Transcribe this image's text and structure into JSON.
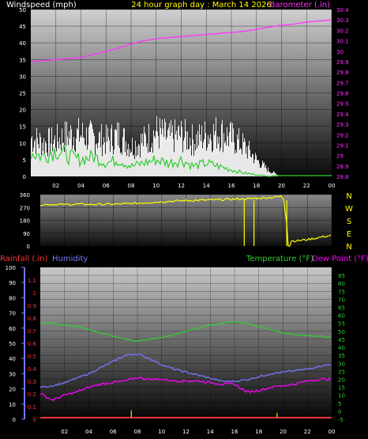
{
  "header": {
    "wind_label": "Windspeed (mph)",
    "title": "24 hour graph day : March 14 2026",
    "baro_label": "Barometer (.in)"
  },
  "panel3_labels": {
    "rain": "Rainfall (.in)",
    "humidity": "Humidity",
    "temperature": "Temperature (°F)",
    "dewpoint": "Dew Point (°F)"
  },
  "compass_labels": [
    "N",
    "W",
    "S",
    "E",
    "N"
  ],
  "colors": {
    "wind": "#ffffff",
    "gust": "#33cc33",
    "barometer": "#ff33ff",
    "direction": "#ffff00",
    "temperature": "#33cc33",
    "dewpoint": "#ff00ff",
    "humidity": "#7777ff",
    "rain": "#ff3333",
    "rain_bars": "#cccc00"
  },
  "chart_data": [
    {
      "type": "line",
      "name": "wind-barometer",
      "x_ticks": [
        "02",
        "04",
        "06",
        "08",
        "10",
        "12",
        "14",
        "16",
        "18",
        "20",
        "22",
        "00"
      ],
      "y_left_ticks": [
        "0",
        "5",
        "10",
        "15",
        "20",
        "25",
        "30",
        "35",
        "40",
        "45",
        "50"
      ],
      "y_left_range": [
        0,
        50
      ],
      "y_right_ticks": [
        "28.8",
        "28.9",
        "29",
        "29.1",
        "29.2",
        "29.3",
        "29.4",
        "29.5",
        "29.6",
        "29.7",
        "29.8",
        "29.9",
        "30",
        "30.1",
        "30.2",
        "30.3",
        "30.4"
      ],
      "y_right_range": [
        28.8,
        30.4
      ],
      "x_hours": [
        0,
        1,
        2,
        3,
        4,
        5,
        6,
        7,
        8,
        9,
        10,
        11,
        12,
        13,
        14,
        15,
        16,
        17,
        18,
        19,
        20,
        21,
        22,
        23,
        24
      ],
      "series": [
        {
          "key": "windspeed",
          "axis": "left",
          "values": [
            14,
            12,
            13,
            15,
            15,
            14,
            13,
            15,
            11,
            13,
            16,
            14,
            15,
            13,
            15,
            16,
            14,
            11,
            6,
            2,
            0,
            0,
            0,
            0,
            0
          ]
        },
        {
          "key": "gust",
          "axis": "left",
          "values": [
            7,
            6,
            8,
            6,
            5,
            6,
            4,
            5,
            3,
            4,
            5,
            4,
            5,
            3,
            4,
            3,
            2,
            1,
            0.5,
            0,
            0,
            0,
            0,
            0,
            0
          ]
        },
        {
          "key": "barometer",
          "axis": "right",
          "values": [
            29.9,
            29.91,
            29.92,
            29.93,
            29.94,
            29.97,
            30.0,
            30.03,
            30.07,
            30.1,
            30.12,
            30.13,
            30.14,
            30.15,
            30.16,
            30.17,
            30.18,
            30.19,
            30.21,
            30.23,
            30.25,
            30.26,
            30.28,
            30.29,
            30.3
          ]
        }
      ]
    },
    {
      "type": "line",
      "name": "wind-direction",
      "y_ticks": [
        "0",
        "90",
        "180",
        "270",
        "360"
      ],
      "y_range": [
        0,
        360
      ],
      "x_hours": [
        0,
        1,
        2,
        3,
        4,
        5,
        6,
        7,
        8,
        9,
        10,
        11,
        12,
        13,
        14,
        15,
        16,
        17,
        18,
        19,
        20,
        20.5,
        21,
        22,
        23,
        24
      ],
      "values": [
        290,
        292,
        290,
        293,
        291,
        292,
        293,
        295,
        300,
        305,
        310,
        315,
        318,
        320,
        322,
        325,
        328,
        330,
        335,
        340,
        348,
        40,
        35,
        45,
        60,
        75
      ]
    },
    {
      "type": "line",
      "name": "temperature-humidity",
      "y_left_ticks": [
        "0",
        "10",
        "20",
        "30",
        "40",
        "50",
        "60",
        "70",
        "80",
        "90",
        "100"
      ],
      "y_left_range": [
        0,
        100
      ],
      "y_rain_ticks": [
        "0",
        "0.1",
        "0.2",
        "0.3",
        "0.4",
        "0.5",
        "0.6",
        "0.7",
        "0.8",
        "0.9",
        "1",
        "1.1"
      ],
      "y_right_ticks": [
        "-5",
        "0",
        "5",
        "10",
        "15",
        "20",
        "25",
        "30",
        "35",
        "40",
        "45",
        "50",
        "55",
        "60",
        "65",
        "70",
        "75",
        "80",
        "85"
      ],
      "y_right_range": [
        -5,
        90
      ],
      "x_hours": [
        0,
        1,
        2,
        3,
        4,
        5,
        6,
        7,
        8,
        9,
        10,
        11,
        12,
        13,
        14,
        15,
        16,
        17,
        18,
        19,
        20,
        21,
        22,
        23,
        24
      ],
      "series": [
        {
          "key": "temperature",
          "axis": "right",
          "values": [
            55,
            55,
            54,
            53,
            51,
            49,
            47,
            45,
            44,
            45,
            46,
            48,
            50,
            52,
            54,
            55,
            56,
            55,
            53,
            51,
            49,
            48,
            47,
            47,
            46
          ]
        },
        {
          "key": "humidity",
          "axis": "left",
          "values": [
            21,
            22,
            24,
            27,
            30,
            34,
            38,
            42,
            43,
            40,
            36,
            33,
            31,
            29,
            27,
            25,
            25,
            26,
            28,
            30,
            31,
            32,
            33,
            35,
            36
          ]
        },
        {
          "key": "dewpoint",
          "axis": "right",
          "values": [
            11,
            7,
            10,
            12,
            15,
            17,
            18,
            19,
            21,
            20,
            20,
            19,
            19,
            19,
            18,
            17,
            17,
            12,
            13,
            15,
            16,
            17,
            19,
            20,
            20
          ]
        },
        {
          "key": "rain_events",
          "axis": "rain",
          "values": [
            {
              "hour": 7.5,
              "value": 0.07
            },
            {
              "hour": 19.5,
              "value": 0.05
            }
          ]
        }
      ]
    }
  ]
}
